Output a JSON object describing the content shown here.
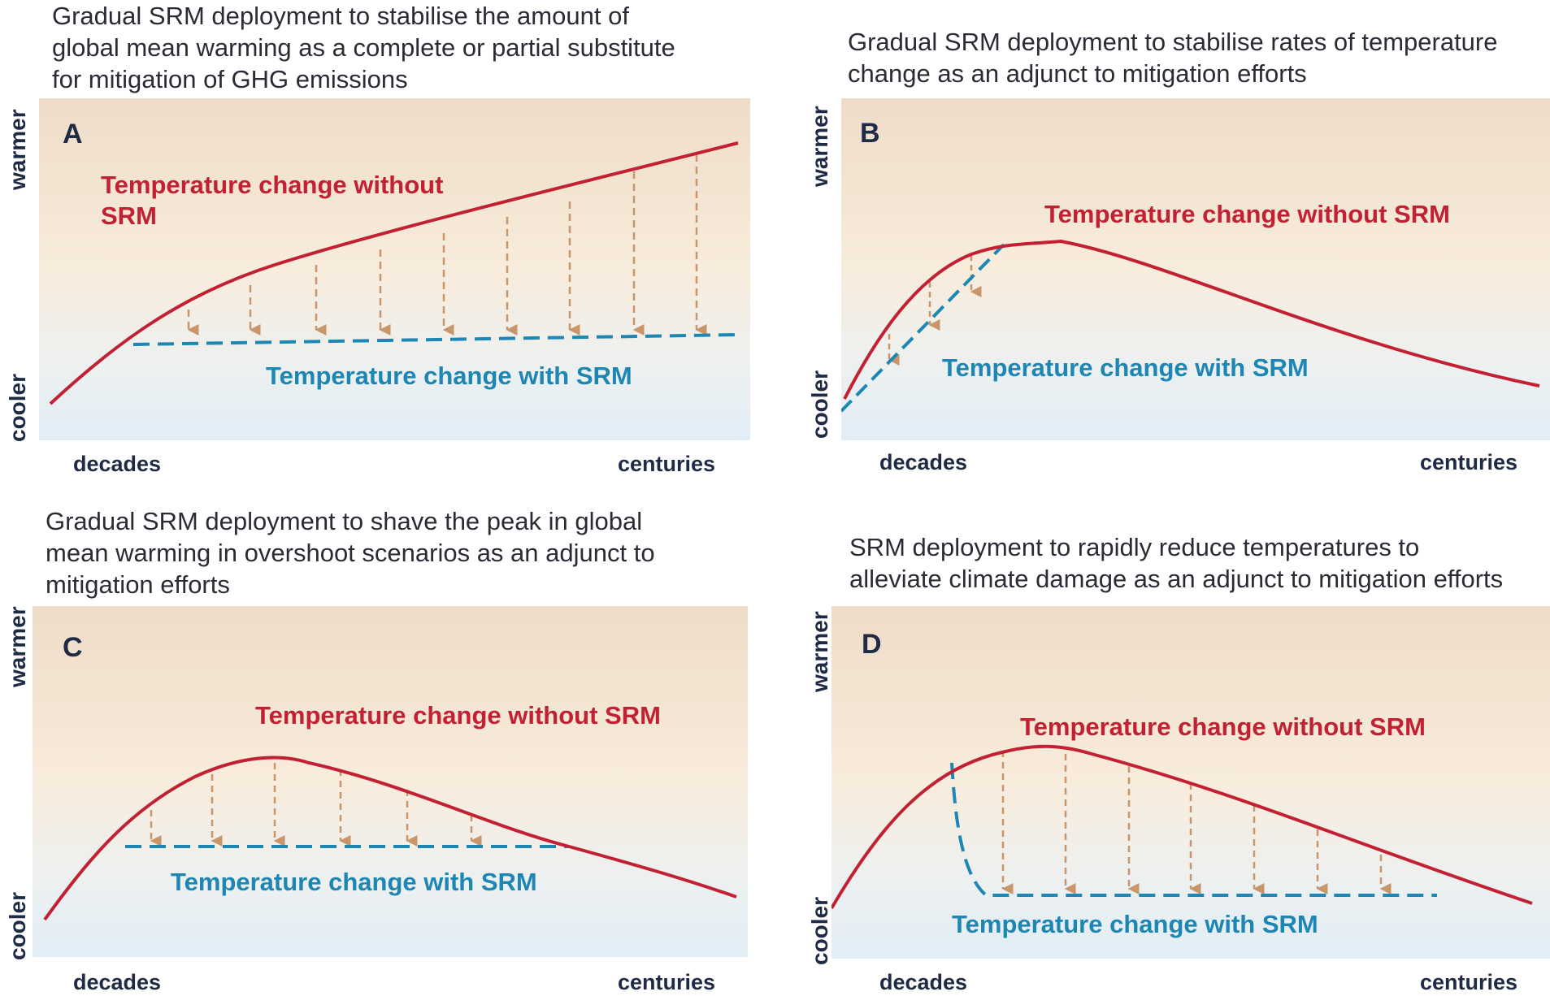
{
  "axis": {
    "warmer": "warmer",
    "cooler": "cooler",
    "decades": "decades",
    "centuries": "centuries"
  },
  "legend": {
    "without": "Temperature change without SRM",
    "with": "Temperature change with SRM"
  },
  "colors": {
    "without_line": "#c22033",
    "with_line": "#1d86b3",
    "arrow": "#c9956a",
    "bg_top": "#eedcc8",
    "bg_mid": "#f8ecdc",
    "bg_bottom": "#e2eef7"
  },
  "panels": {
    "A": {
      "letter": "A",
      "title_lines": [
        "Gradual SRM deployment to stabilise the amount of",
        "global mean warming as a complete or partial substitute",
        "for mitigation of GHG emissions"
      ],
      "without_lines": [
        "Temperature change without",
        "SRM"
      ]
    },
    "B": {
      "letter": "B",
      "title_lines": [
        "Gradual SRM deployment to stabilise rates of temperature",
        "change as an adjunct to mitigation efforts"
      ]
    },
    "C": {
      "letter": "C",
      "title_lines": [
        "Gradual SRM deployment to shave the peak in global",
        "mean warming in overshoot scenarios as an adjunct to",
        "mitigation efforts"
      ]
    },
    "D": {
      "letter": "D",
      "title_lines": [
        "SRM deployment to rapidly reduce temperatures to",
        "alleviate climate damage as an adjunct to mitigation efforts"
      ]
    }
  }
}
